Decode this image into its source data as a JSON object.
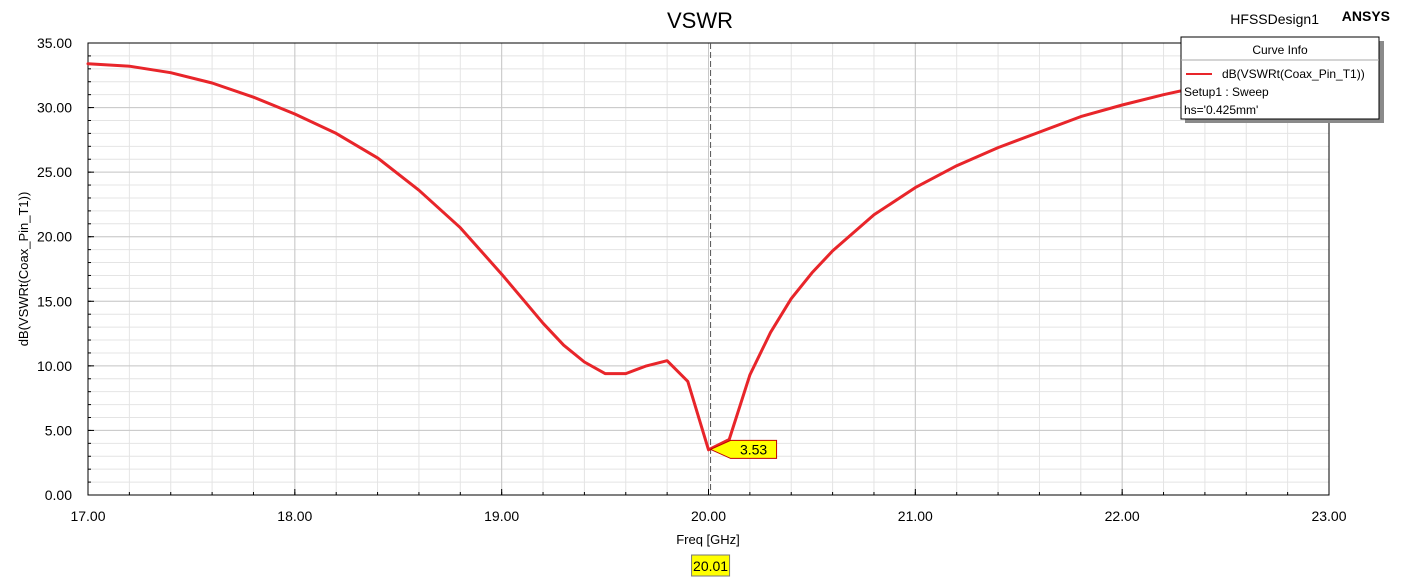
{
  "header": {
    "design_name": "HFSSDesign1",
    "brand": "ANSYS"
  },
  "legend": {
    "title": "Curve Info",
    "curve_label": "dB(VSWRt(Coax_Pin_T1))",
    "setup_line": "Setup1 : Sweep",
    "param_line": "hs='0.425mm'"
  },
  "marker": {
    "x_label": "20.01",
    "y_label": "3.53",
    "x": 20.01,
    "y": 3.53
  },
  "colors": {
    "curve": "#e8252a",
    "marker_box": "#ffff00",
    "grid_major": "#c8c8c8",
    "grid_minor": "#e4e4e4"
  },
  "chart_data": {
    "type": "line",
    "title": "VSWR",
    "xlabel": "Freq [GHz]",
    "ylabel": "dB(VSWRt(Coax_Pin_T1))",
    "xlim": [
      17,
      23
    ],
    "ylim": [
      0,
      35
    ],
    "grid": true,
    "legend_position": "top-right",
    "x_ticks": [
      "17.00",
      "18.00",
      "19.00",
      "20.00",
      "21.00",
      "22.00",
      "23.00"
    ],
    "y_ticks": [
      "0.00",
      "5.00",
      "10.00",
      "15.00",
      "20.00",
      "25.00",
      "30.00",
      "35.00"
    ],
    "series": [
      {
        "name": "dB(VSWRt(Coax_Pin_T1))",
        "x": [
          17.0,
          17.2,
          17.4,
          17.6,
          17.8,
          18.0,
          18.2,
          18.4,
          18.6,
          18.8,
          19.0,
          19.1,
          19.2,
          19.3,
          19.4,
          19.5,
          19.6,
          19.7,
          19.8,
          19.9,
          20.0,
          20.1,
          20.2,
          20.3,
          20.4,
          20.5,
          20.6,
          20.8,
          21.0,
          21.2,
          21.4,
          21.6,
          21.8,
          22.0,
          22.2,
          22.4
        ],
        "y": [
          33.4,
          33.2,
          32.7,
          31.9,
          30.8,
          29.5,
          28.0,
          26.1,
          23.6,
          20.7,
          17.1,
          15.2,
          13.3,
          11.6,
          10.3,
          9.4,
          9.4,
          10.0,
          10.4,
          8.8,
          3.5,
          4.3,
          9.3,
          12.6,
          15.2,
          17.2,
          18.9,
          21.7,
          23.8,
          25.5,
          26.9,
          28.1,
          29.3,
          30.2,
          31.0,
          31.7
        ]
      }
    ]
  }
}
